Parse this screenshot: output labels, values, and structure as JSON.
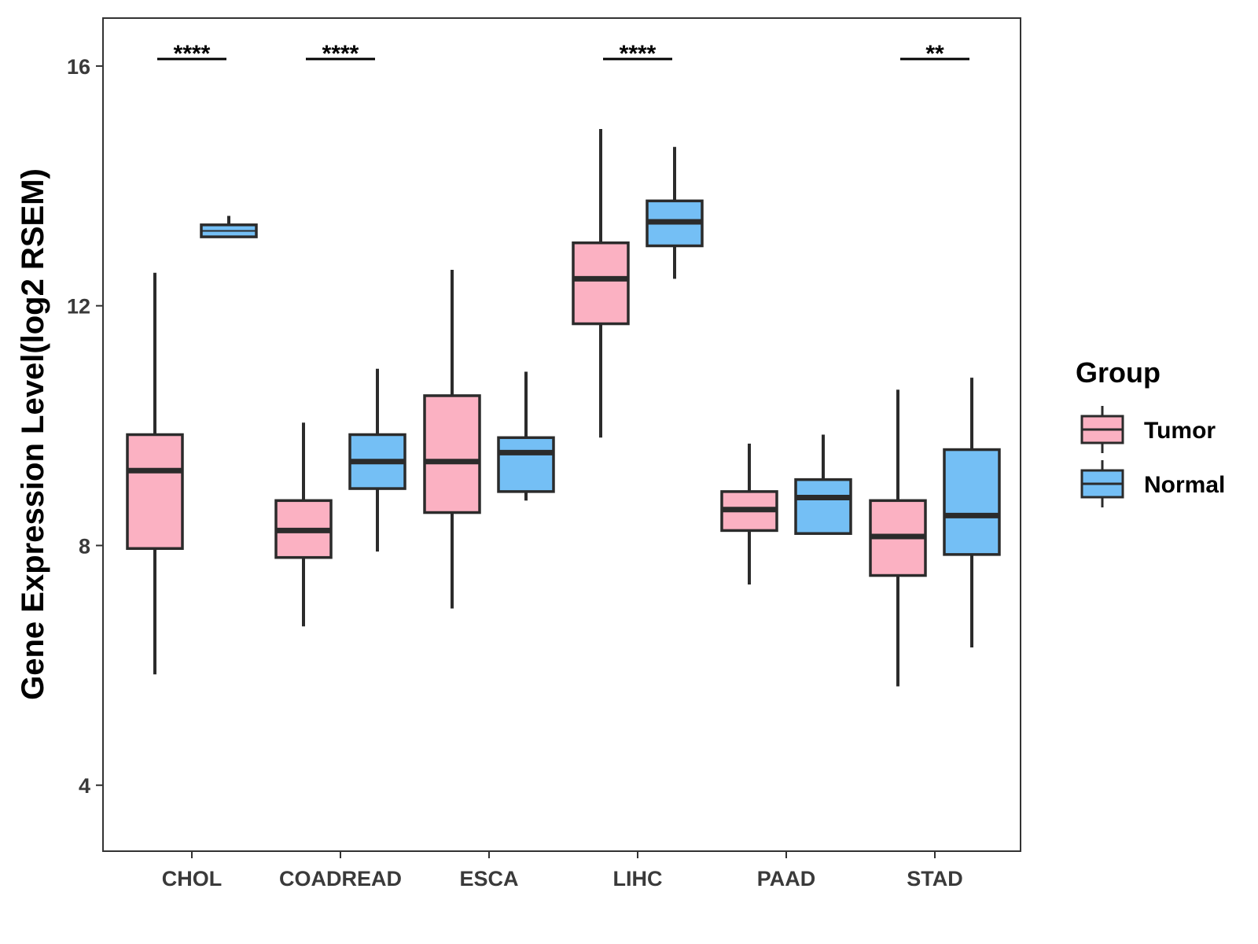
{
  "chart_data": {
    "type": "boxplot",
    "title": "",
    "xlabel": "",
    "ylabel": "Gene Expression Level(log2 RSEM)",
    "ylim": [
      2.9,
      16.8
    ],
    "yticks": [
      4,
      8,
      12,
      16
    ],
    "categories": [
      "CHOL",
      "COADREAD",
      "ESCA",
      "LIHC",
      "PAAD",
      "STAD"
    ],
    "series": [
      {
        "name": "Tumor",
        "color": "#FBB1C2",
        "boxes": [
          {
            "min": 5.85,
            "q1": 7.95,
            "median": 9.25,
            "q3": 9.85,
            "max": 12.55
          },
          {
            "min": 6.65,
            "q1": 7.8,
            "median": 8.25,
            "q3": 8.75,
            "max": 10.05
          },
          {
            "min": 6.95,
            "q1": 8.55,
            "median": 9.4,
            "q3": 10.5,
            "max": 12.6
          },
          {
            "min": 9.8,
            "q1": 11.7,
            "median": 12.45,
            "q3": 13.05,
            "max": 14.95
          },
          {
            "min": 7.35,
            "q1": 8.25,
            "median": 8.6,
            "q3": 8.9,
            "max": 9.7
          },
          {
            "min": 5.65,
            "q1": 7.5,
            "median": 8.15,
            "q3": 8.75,
            "max": 10.6
          }
        ]
      },
      {
        "name": "Normal",
        "color": "#74BFF5",
        "boxes": [
          {
            "min": 13.15,
            "q1": 13.15,
            "median": 13.25,
            "q3": 13.35,
            "max": 13.5
          },
          {
            "min": 7.9,
            "q1": 8.95,
            "median": 9.4,
            "q3": 9.85,
            "max": 10.95
          },
          {
            "min": 8.75,
            "q1": 8.9,
            "median": 9.55,
            "q3": 9.8,
            "max": 10.9
          },
          {
            "min": 12.45,
            "q1": 13.0,
            "median": 13.4,
            "q3": 13.75,
            "max": 14.65
          },
          {
            "min": 8.2,
            "q1": 8.2,
            "median": 8.8,
            "q3": 9.1,
            "max": 9.85
          },
          {
            "min": 6.3,
            "q1": 7.85,
            "median": 8.5,
            "q3": 9.6,
            "max": 10.8
          }
        ]
      }
    ],
    "significance": [
      "****",
      "****",
      "",
      "****",
      "",
      "**"
    ],
    "legend": {
      "title": "Group",
      "position": "right"
    },
    "grid": false
  }
}
